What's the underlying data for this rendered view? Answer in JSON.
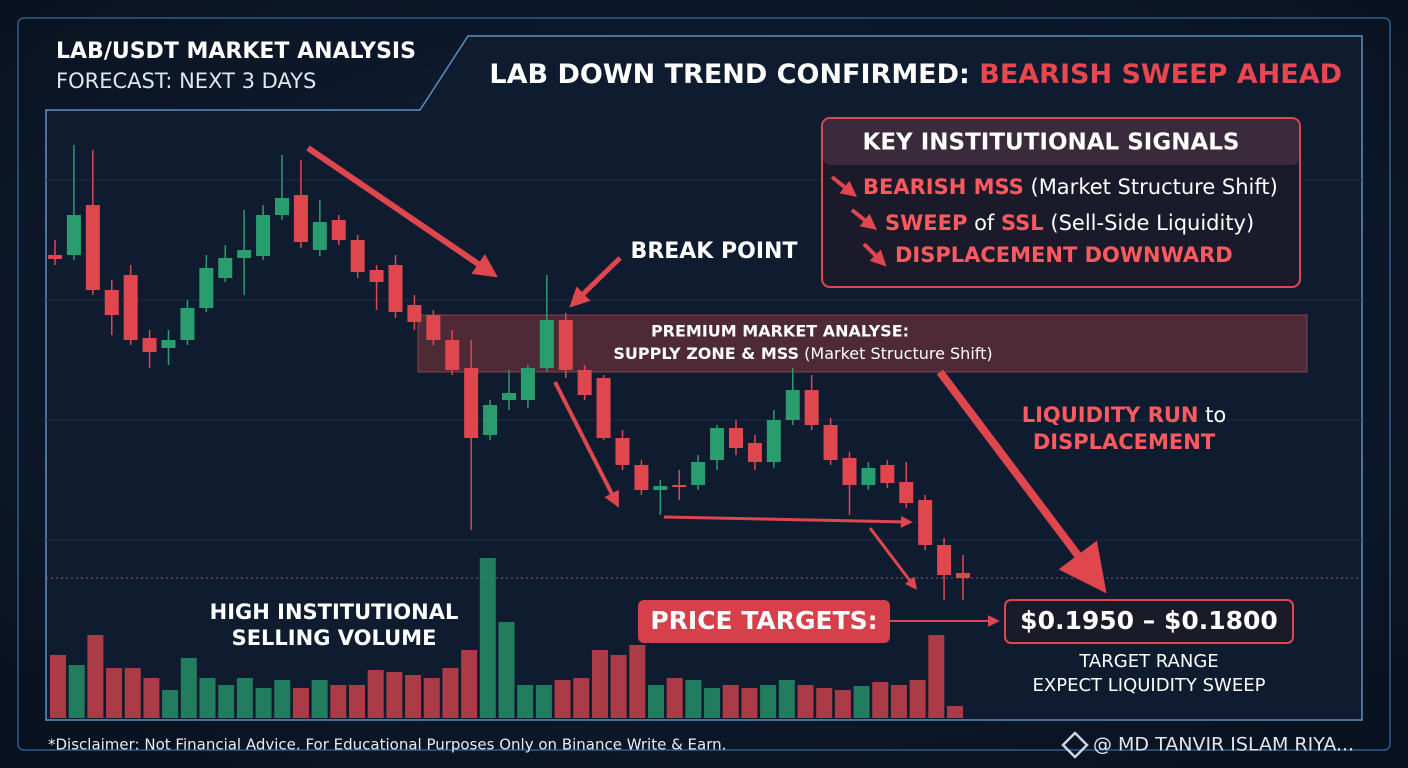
{
  "header": {
    "title": "LAB/USDT MARKET ANALYSIS",
    "subtitle": "FORECAST: NEXT 3 DAYS"
  },
  "headline": {
    "lead": "LAB DOWN TREND CONFIRMED:",
    "highlight": "BEARISH SWEEP AHEAD"
  },
  "signals": {
    "title": "KEY INSTITUTIONAL SIGNALS",
    "item1": {
      "key": "BEARISH MSS",
      "rest": "(Market Structure Shift)"
    },
    "item2": {
      "key": "SWEEP",
      "mid": "of",
      "key2": "SSL",
      "rest": "(Sell-Side Liquidity)"
    },
    "item3": {
      "key": "DISPLACEMENT DOWNWARD"
    }
  },
  "annotations": {
    "break_point": "BREAK POINT",
    "zone_line1": "PREMIUM MARKET ANALYSE:",
    "zone_line2": "SUPPLY ZONE & MSS",
    "zone_note": "(Market Structure Shift)",
    "run_1": "LIQUIDITY RUN",
    "run_to": "to",
    "run_2": "DISPLACEMENT",
    "volume_1": "HIGH INSTITUTIONAL",
    "volume_2": "SELLING VOLUME"
  },
  "targets": {
    "label": "PRICE TARGETS:",
    "range": "$0.1950 – $0.1800",
    "note1": "TARGET RANGE",
    "note2": "EXPECT LIQUIDITY SWEEP"
  },
  "footer": {
    "disclaimer": "*Disclaimer: Not Financial Advice. For Educational Purposes Only on Binance Write & Earn.",
    "watermark": "@ MD TANVIR ISLAM RIYA..."
  },
  "chart_data": {
    "type": "candlestick",
    "open": [
      345,
      345,
      395,
      310,
      325,
      262,
      252,
      260,
      292,
      322,
      342,
      344,
      385,
      405,
      350,
      380,
      360,
      330,
      335,
      295,
      285,
      260,
      232,
      165,
      200,
      200,
      232,
      280,
      230,
      222,
      162,
      135,
      110,
      115,
      115,
      140,
      172,
      157,
      138,
      180,
      210,
      175,
      142,
      115,
      135,
      118,
      100,
      55,
      27
    ],
    "high": [
      360,
      455,
      450,
      320,
      335,
      270,
      270,
      300,
      345,
      355,
      390,
      395,
      445,
      440,
      400,
      385,
      365,
      335,
      345,
      305,
      290,
      270,
      260,
      200,
      230,
      235,
      325,
      287,
      235,
      225,
      170,
      140,
      120,
      130,
      145,
      175,
      180,
      165,
      190,
      232,
      225,
      182,
      148,
      138,
      140,
      138,
      105,
      62,
      45
    ],
    "low": [
      335,
      340,
      305,
      265,
      255,
      232,
      235,
      255,
      288,
      318,
      305,
      340,
      380,
      352,
      344,
      355,
      322,
      290,
      282,
      270,
      255,
      225,
      70,
      160,
      190,
      192,
      228,
      222,
      200,
      160,
      130,
      105,
      85,
      100,
      110,
      130,
      145,
      130,
      132,
      175,
      170,
      135,
      85,
      110,
      112,
      92,
      50,
      0,
      0
    ],
    "close": [
      341,
      385,
      310,
      285,
      260,
      248,
      260,
      292,
      332,
      342,
      350,
      385,
      402,
      358,
      378,
      360,
      328,
      318,
      288,
      278,
      260,
      230,
      162,
      195,
      207,
      232,
      280,
      230,
      205,
      162,
      135,
      110,
      114,
      113,
      138,
      172,
      152,
      138,
      180,
      210,
      175,
      140,
      115,
      132,
      117,
      97,
      55,
      25,
      22
    ],
    "ylim": [
      0,
      500
    ],
    "up_color": "#2a9d6e",
    "down_color": "#e0464e",
    "volume": [
      63,
      53,
      83,
      50,
      50,
      40,
      28,
      60,
      40,
      33,
      40,
      30,
      38,
      30,
      38,
      33,
      33,
      48,
      46,
      43,
      40,
      50,
      68,
      160,
      96,
      33,
      33,
      38,
      40,
      68,
      63,
      73,
      33,
      40,
      38,
      30,
      33,
      30,
      33,
      38,
      33,
      30,
      28,
      32,
      36,
      33,
      38,
      83,
      12
    ],
    "volume_ylim": [
      0,
      200
    ]
  }
}
